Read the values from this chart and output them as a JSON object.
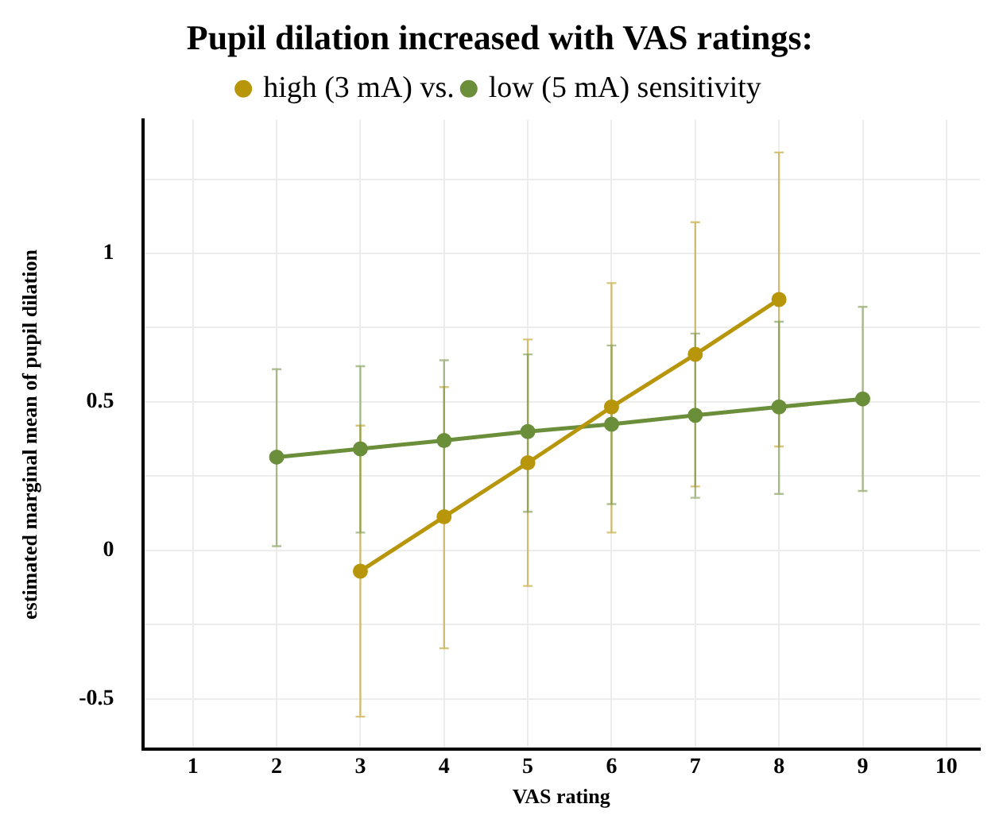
{
  "chart_data": {
    "type": "line",
    "title": "Pupil dilation increased with VAS ratings:",
    "xlabel": "VAS rating",
    "ylabel": "estimated marginal mean of pupil dilation",
    "series": [
      {
        "name": "high (3 mA) vs.",
        "color": "#b8960c",
        "x": [
          3,
          4,
          5,
          6,
          7,
          8
        ],
        "values": [
          -0.07,
          0.113,
          0.295,
          0.483,
          0.66,
          0.845
        ],
        "errors": [
          [
            -0.56,
            0.42
          ],
          [
            -0.33,
            0.55
          ],
          [
            -0.12,
            0.71
          ],
          [
            0.06,
            0.9
          ],
          [
            0.215,
            1.105
          ],
          [
            0.35,
            1.34
          ]
        ]
      },
      {
        "name": "low (5 mA) sensitivity",
        "color": "#6b8e3a",
        "x": [
          2,
          3,
          4,
          5,
          6,
          7,
          8,
          9
        ],
        "values": [
          0.314,
          0.342,
          0.37,
          0.4,
          0.425,
          0.455,
          0.483,
          0.51
        ],
        "errors": [
          [
            0.014,
            0.61
          ],
          [
            0.06,
            0.62
          ],
          [
            0.1,
            0.64
          ],
          [
            0.13,
            0.66
          ],
          [
            0.156,
            0.69
          ],
          [
            0.177,
            0.73
          ],
          [
            0.19,
            0.77
          ],
          [
            0.2,
            0.82
          ]
        ]
      }
    ],
    "xlim": [
      0.4,
      10.4
    ],
    "xticks": [
      1,
      2,
      3,
      4,
      5,
      6,
      7,
      8,
      9,
      10
    ],
    "ylim": [
      -0.67,
      1.45
    ],
    "yticks": [
      {
        "value": -0.5,
        "label": "-0.5"
      },
      {
        "value": -0.25,
        "label": null
      },
      0,
      {
        "value": 0.25,
        "label": null
      },
      0.5,
      {
        "value": 0.75,
        "label": null
      },
      1,
      {
        "value": 1.25,
        "label": null
      }
    ],
    "grid": true,
    "legend": "top",
    "marker": "circle",
    "line_style": "solid"
  }
}
